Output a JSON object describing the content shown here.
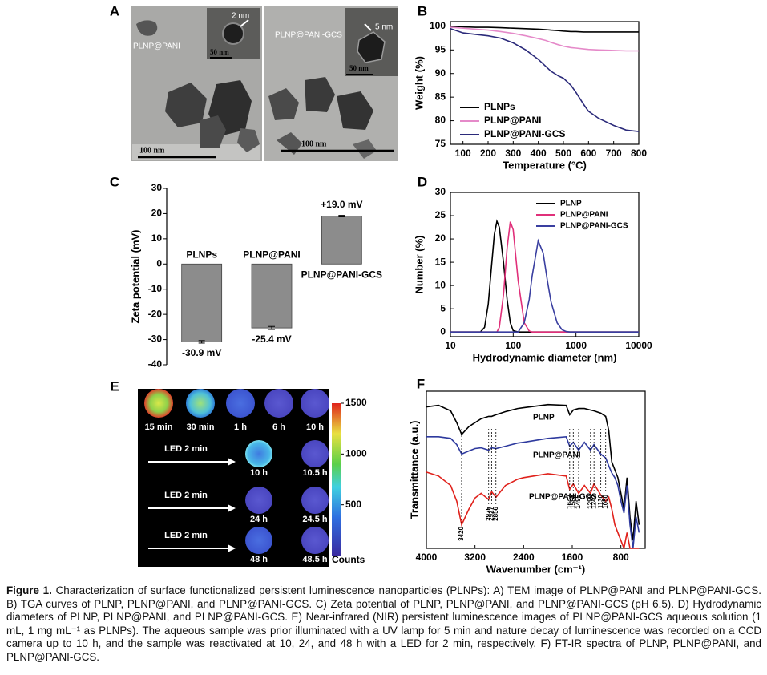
{
  "panel_labels": [
    "A",
    "B",
    "C",
    "D",
    "E",
    "F"
  ],
  "panel_a": {
    "images": [
      {
        "label": "PLNP@PANI",
        "inset_label": "2 nm",
        "inset_scale": "50 nm",
        "scale": "100 nm"
      },
      {
        "label": "PLNP@PANI-GCS",
        "inset_label": "5 nm",
        "inset_scale": "50 nm",
        "scale": "100 nm"
      }
    ]
  },
  "chart_data": [
    {
      "type": "line",
      "xlabel": "Temperature (°C)",
      "ylabel": "Weight (%)",
      "x": [
        50,
        100,
        150,
        200,
        250,
        300,
        350,
        400,
        430,
        450,
        480,
        500,
        530,
        550,
        580,
        600,
        640,
        700,
        750,
        800
      ],
      "xlim": [
        50,
        800
      ],
      "xticks": [
        100,
        200,
        300,
        400,
        500,
        600,
        700,
        800
      ],
      "ylim": [
        75,
        101
      ],
      "yticks": [
        75,
        80,
        85,
        90,
        95,
        100
      ],
      "legend": "lower left",
      "series": [
        {
          "name": "PLNPs",
          "color": "#000000",
          "values": [
            100,
            99.9,
            99.8,
            99.8,
            99.7,
            99.6,
            99.5,
            99.4,
            99.3,
            99.2,
            99.1,
            99,
            98.9,
            98.9,
            98.8,
            98.8,
            98.8,
            98.8,
            98.8,
            98.8
          ]
        },
        {
          "name": "PLNP@PANI",
          "color": "#e58ac9",
          "values": [
            99.8,
            99.6,
            99.4,
            99.2,
            98.9,
            98.5,
            98,
            97.4,
            97,
            96.6,
            96.1,
            95.8,
            95.5,
            95.4,
            95.2,
            95.1,
            95,
            94.9,
            94.8,
            94.8
          ]
        },
        {
          "name": "PLNP@PANI-GCS",
          "color": "#2b2a7a",
          "values": [
            99.5,
            98.6,
            98.3,
            98,
            97.5,
            96.5,
            95,
            93,
            91.5,
            90.5,
            89.5,
            89,
            87.5,
            86,
            83.5,
            82,
            80.5,
            79,
            78,
            77.7
          ]
        }
      ]
    },
    {
      "type": "bar",
      "ylabel": "Zeta potential (mV)",
      "categories": [
        "PLNPs",
        "PLNP@PANI",
        "PLNP@PANI-GCS"
      ],
      "values": [
        -30.9,
        -25.4,
        19.0
      ],
      "value_labels": [
        "-30.9 mV",
        "-25.4 mV",
        "+19.0 mV"
      ],
      "errors": [
        0.5,
        0.6,
        0.3
      ],
      "color": "#8c8c8c",
      "ylim": [
        -40,
        30
      ],
      "yticks": [
        -40,
        -30,
        -20,
        -10,
        0,
        10,
        20,
        30
      ]
    },
    {
      "type": "line",
      "xlabel": "Hydrodynamic diameter (nm)",
      "ylabel": "Number (%)",
      "xscale": "log",
      "x": [
        10,
        30,
        35,
        40,
        45,
        50,
        55,
        60,
        70,
        80,
        90,
        100,
        120,
        150,
        180,
        200,
        250,
        300,
        350,
        400,
        500,
        600,
        700,
        800,
        1000,
        10000
      ],
      "xlim": [
        10,
        10000
      ],
      "xticks": [
        10,
        100,
        1000,
        10000
      ],
      "ylim": [
        -1,
        30
      ],
      "yticks": [
        0,
        5,
        10,
        15,
        20,
        25,
        30
      ],
      "legend": "upper right",
      "series": [
        {
          "name": "PLNP",
          "color": "#000000",
          "values": [
            0,
            0,
            1,
            6,
            14,
            21,
            23.8,
            22.5,
            15,
            7,
            2,
            0.3,
            0,
            0,
            0,
            0,
            0,
            0,
            0,
            0,
            0,
            0,
            0,
            0,
            0,
            0
          ]
        },
        {
          "name": "PLNP@PANI",
          "color": "#e0307a",
          "values": [
            0,
            0,
            0,
            0,
            0,
            0,
            0,
            1,
            8,
            18,
            23.7,
            22,
            11,
            2,
            0.2,
            0,
            0,
            0,
            0,
            0,
            0,
            0,
            0,
            0,
            0,
            0
          ]
        },
        {
          "name": "PLNP@PANI-GCS",
          "color": "#3a3fa0",
          "values": [
            0,
            0,
            0,
            0,
            0,
            0,
            0,
            0,
            0,
            0,
            0,
            0,
            0,
            2,
            7,
            12,
            19.6,
            17,
            11,
            6.5,
            2,
            0.5,
            0.1,
            0,
            0,
            0
          ]
        }
      ]
    },
    {
      "type": "line",
      "xlabel": "Wavenumber (cm⁻¹)",
      "ylabel": "Transmittance (a.u.)",
      "x": [
        4000,
        3800,
        3600,
        3500,
        3420,
        3300,
        3200,
        3100,
        2975,
        2927,
        2856,
        2700,
        2500,
        2400,
        2000,
        1700,
        1642,
        1583,
        1495,
        1400,
        1299,
        1242,
        1130,
        1050,
        1000,
        950,
        900,
        850,
        800,
        750,
        700,
        650,
        600,
        550,
        500
      ],
      "xlim": [
        4000,
        400
      ],
      "xticks": [
        4000,
        3200,
        2400,
        1600,
        800
      ],
      "ylim": [
        0,
        100
      ],
      "legend": "inline",
      "peaks": [
        3420,
        2975,
        2927,
        2856,
        1642,
        1583,
        1495,
        1299,
        1242,
        1130,
        1050
      ],
      "series": [
        {
          "name": "PLNP",
          "color": "#000000",
          "values": [
            90,
            91,
            87.5,
            80,
            72.5,
            77.5,
            80,
            82.5,
            84,
            84,
            85,
            87,
            89,
            89.5,
            91.5,
            91,
            85,
            88,
            89,
            89,
            88,
            87.5,
            86,
            84,
            75,
            55,
            50,
            45,
            35,
            25,
            45,
            20,
            5,
            30,
            15
          ]
        },
        {
          "name": "PLNP@PANI",
          "color": "#2e3a9e",
          "values": [
            71,
            71,
            70,
            66,
            60,
            62,
            63.5,
            64,
            62.5,
            64,
            63.5,
            65,
            67,
            67.5,
            70,
            71,
            65,
            67.5,
            62.5,
            67.5,
            62.5,
            66,
            60,
            57.5,
            52.5,
            48,
            45,
            40,
            30,
            22.5,
            40,
            15,
            0,
            20,
            10
          ]
        },
        {
          "name": "PLNP@PANI-GCS",
          "color": "#e0221c",
          "values": [
            48.5,
            46,
            40,
            30,
            15,
            25,
            32,
            35,
            31,
            36,
            32.5,
            40,
            44,
            45,
            47.5,
            46,
            37.5,
            41,
            35,
            40,
            35,
            41,
            34,
            30,
            32.5,
            25,
            15,
            10,
            5,
            0,
            10,
            0,
            0,
            0,
            0
          ]
        }
      ]
    }
  ],
  "panel_e": {
    "times": [
      "15 min",
      "30 min",
      "1 h",
      "6 h",
      "10 h"
    ],
    "led": [
      "LED 2 min",
      "LED 2 min",
      "LED 2 min"
    ],
    "rows": [
      [
        "10 h",
        "10.5 h"
      ],
      [
        "24 h",
        "24.5 h"
      ],
      [
        "48 h",
        "48.5 h"
      ]
    ],
    "colorbar": {
      "lim": [
        0,
        1500
      ],
      "ticks": [
        1500,
        1000,
        500
      ],
      "label": "Counts"
    }
  },
  "caption": {
    "label": "Figure 1.",
    "text": "Characterization of surface functionalized persistent luminescence nanoparticles (PLNPs): A) TEM image of PLNP@PANI and PLNP@PANI-GCS. B) TGA curves of PLNP, PLNP@PANI, and PLNP@PANI-GCS. C) Zeta potential of PLNP, PLNP@PANI, and PLNP@PANI-GCS (pH 6.5). D) Hydrodynamic diameters of PLNP, PLNP@PANI, and PLNP@PANI-GCS. E) Near-infrared (NIR) persistent luminescence images of PLNP@PANI-GCS aqueous solution (1 mL, 1 mg mL⁻¹ as PLNPs). The aqueous sample was prior illuminated with a UV lamp for 5 min and nature decay of luminescence was recorded on a CCD camera up to 10 h, and the sample was reactivated at 10, 24, and 48 h with a LED for 2 min, respectively. F) FT-IR spectra of PLNP, PLNP@PANI, and PLNP@PANI-GCS."
  }
}
